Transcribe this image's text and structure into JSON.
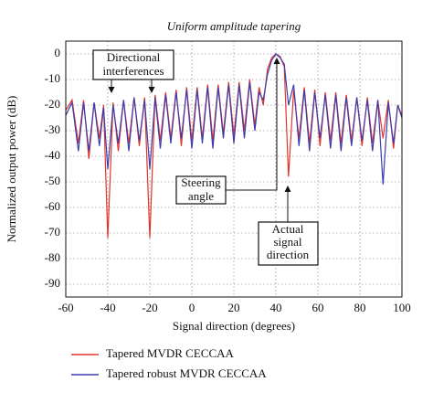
{
  "chart_data": {
    "type": "line",
    "title": "Uniform amplitude tapering",
    "x_label": "Signal direction (degrees)",
    "y_label": "Normalized output power (dB)",
    "xlim": [
      -60,
      100
    ],
    "xticks": [
      -60,
      -40,
      -20,
      0,
      20,
      40,
      60,
      80,
      100
    ],
    "ylim": [
      -95,
      5
    ],
    "yticks": [
      0,
      -10,
      -20,
      -30,
      -40,
      -50,
      -60,
      -70,
      -80,
      -90
    ],
    "grid": true,
    "x": [
      -60,
      -57,
      -54,
      -51.5,
      -49,
      -46.5,
      -44,
      -42,
      -40,
      -37.5,
      -35,
      -32.5,
      -30,
      -27.5,
      -25,
      -22.5,
      -20,
      -17.5,
      -15,
      -12.5,
      -10,
      -7.5,
      -5,
      -2.5,
      0,
      2.5,
      5,
      7.5,
      10,
      12.5,
      15,
      17.5,
      20,
      22.5,
      25,
      27.5,
      30,
      32,
      34,
      36,
      38,
      40,
      42,
      44,
      46,
      48.5,
      51,
      53.5,
      56,
      58.5,
      61,
      63.5,
      66,
      68.5,
      71,
      73.5,
      76,
      78.5,
      81,
      83.5,
      86,
      88.5,
      91,
      93.5,
      96,
      98,
      100
    ],
    "series": [
      {
        "name": "Tapered MVDR CECCAA",
        "color": "#e3342a",
        "values": [
          -22,
          -18,
          -35,
          -18,
          -41,
          -19,
          -33,
          -20,
          -72,
          -19,
          -38,
          -18,
          -35,
          -17,
          -36,
          -17,
          -72,
          -16,
          -34,
          -15,
          -33,
          -14,
          -36,
          -13,
          -34,
          -13,
          -33,
          -12,
          -34,
          -12,
          -31,
          -11,
          -32,
          -11,
          -30,
          -10,
          -28,
          -13,
          -20,
          -6,
          -1.5,
          0,
          -1,
          -5,
          -48,
          -14,
          -33,
          -13,
          -35,
          -14,
          -36,
          -15,
          -34,
          -15,
          -35,
          -16,
          -34,
          -17,
          -36,
          -17,
          -35,
          -18,
          -33,
          -18,
          -37,
          -20,
          -24
        ]
      },
      {
        "name": "Tapered robust MVDR CECCAA",
        "color": "#3c3cae",
        "values": [
          -24,
          -19,
          -38,
          -19,
          -38,
          -19,
          -36,
          -21,
          -45,
          -20,
          -35,
          -18,
          -38,
          -17,
          -34,
          -18,
          -45,
          -17,
          -37,
          -16,
          -35,
          -15,
          -33,
          -14,
          -37,
          -14,
          -35,
          -13,
          -37,
          -13,
          -33,
          -12,
          -35,
          -12,
          -33,
          -11,
          -30,
          -15,
          -18,
          -8,
          -2.5,
          0,
          -1.5,
          -4,
          -20,
          -12,
          -36,
          -14,
          -38,
          -15,
          -33,
          -16,
          -37,
          -16,
          -38,
          -17,
          -36,
          -17,
          -34,
          -18,
          -38,
          -18,
          -51,
          -19,
          -35,
          -20,
          -25
        ]
      }
    ],
    "annotations": [
      {
        "lines": [
          "Directional",
          "interferences"
        ]
      },
      {
        "lines": [
          "Steering",
          "angle"
        ]
      },
      {
        "lines": [
          "Actual",
          "signal",
          "direction"
        ]
      }
    ]
  }
}
